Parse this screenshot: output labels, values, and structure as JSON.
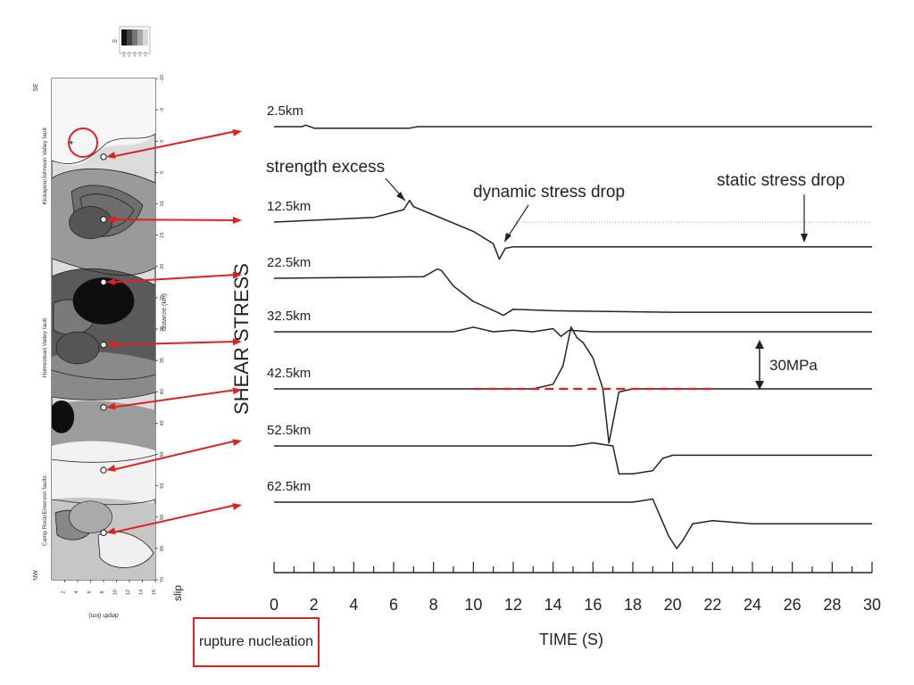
{
  "chart_data": [
    {
      "type": "heatmap",
      "title": "",
      "legend": {
        "unit_label": "m",
        "levels": [
          "8.0",
          "6.0",
          "4.0",
          "2.0",
          "1.0"
        ],
        "colors": [
          "#111111",
          "#444444",
          "#777777",
          "#a8a8a8",
          "#d8d8d8"
        ]
      },
      "xlabel": "depth (km)",
      "ylabel": "distance (km)",
      "depth_ticks": [
        "2",
        "4",
        "6",
        "8",
        "10",
        "12",
        "14",
        "16"
      ],
      "distance_ticks": [
        -10,
        -5,
        0,
        5,
        10,
        15,
        20,
        25,
        30,
        35,
        40,
        45,
        50,
        55,
        60,
        65,
        70
      ],
      "distance_range": [
        -10,
        70
      ],
      "depth_range": [
        0,
        16
      ],
      "slip_axis_label": "slip",
      "end_labels": {
        "top": "SE",
        "bottom": "NW"
      },
      "fault_segments": [
        {
          "label": "Kickapoo/Johnson Valley fault",
          "range": [
            -10,
            18
          ]
        },
        {
          "label": "Homestead Valley fault",
          "range": [
            18,
            48
          ]
        },
        {
          "label": "Camp Rock/Emerson faults",
          "range": [
            48,
            70
          ]
        }
      ],
      "hypocenter": {
        "distance": 0.5,
        "depth": 3
      },
      "stations": [
        {
          "distance": 2.5,
          "depth": 8
        },
        {
          "distance": 12.5,
          "depth": 8
        },
        {
          "distance": 22.5,
          "depth": 8
        },
        {
          "distance": 32.5,
          "depth": 8
        },
        {
          "distance": 42.5,
          "depth": 8
        },
        {
          "distance": 52.5,
          "depth": 8
        },
        {
          "distance": 62.5,
          "depth": 8
        }
      ],
      "slip_patches": [
        {
          "distance": 25.5,
          "depth": 8,
          "slip": 8
        },
        {
          "distance": 44,
          "depth": 1.5,
          "slip": 8
        },
        {
          "distance": 13,
          "depth": 6,
          "slip": 4
        },
        {
          "distance": 33,
          "depth": 4,
          "slip": 4
        },
        {
          "distance": 60,
          "depth": 6,
          "slip": 2
        }
      ]
    },
    {
      "type": "line",
      "title": "",
      "xlabel": "TIME (S)",
      "ylabel": "SHEAR STRESS",
      "xlim": [
        0,
        30
      ],
      "x_ticks": [
        0,
        2,
        4,
        6,
        8,
        10,
        12,
        14,
        16,
        18,
        20,
        22,
        24,
        26,
        28,
        30
      ],
      "scale_bar": {
        "label": "30MPa",
        "value": 30
      },
      "annotations": {
        "strength_excess": "strength excess",
        "dynamic_stress_drop": "dynamic stress drop",
        "static_stress_drop": "static stress drop",
        "nucleation_box": "rupture nucleation"
      },
      "reference_line": {
        "series": "42.5km",
        "x_from": 10,
        "x_to": 22,
        "y": 0
      },
      "series": [
        {
          "name": "2.5km",
          "x": [
            0,
            1.4,
            1.6,
            2.0,
            6.8,
            7.2,
            30
          ],
          "y": [
            0,
            0,
            1,
            -1,
            -1,
            0,
            0
          ]
        },
        {
          "name": "12.5km",
          "x": [
            0,
            5,
            6.5,
            6.8,
            7.0,
            8.5,
            10,
            11.0,
            11.3,
            11.6,
            12,
            30
          ],
          "y": [
            0,
            3,
            8,
            14,
            10,
            2,
            -6,
            -14,
            -24,
            -17,
            -16,
            -16
          ]
        },
        {
          "name": "22.5km",
          "x": [
            0,
            7.5,
            8.2,
            8.4,
            9,
            10,
            11.2,
            11.5,
            12,
            14,
            20,
            30
          ],
          "y": [
            0,
            1,
            6,
            5,
            -5,
            -15,
            -22,
            -24,
            -20,
            -21,
            -22,
            -22
          ]
        },
        {
          "name": "32.5km",
          "x": [
            0,
            9,
            10,
            11,
            12,
            13,
            14,
            14.4,
            14.8,
            16,
            30
          ],
          "y": [
            0,
            0,
            3,
            0,
            1,
            0,
            2,
            -3,
            1,
            0,
            0
          ]
        },
        {
          "name": "42.5km",
          "x": [
            0,
            10,
            13,
            14,
            14.5,
            14.9,
            15.2,
            15.5,
            16,
            16.5,
            16.8,
            17.3,
            18,
            30
          ],
          "y": [
            0,
            0,
            0,
            3,
            15,
            40,
            33,
            30,
            20,
            0,
            -35,
            -2,
            0,
            0
          ]
        },
        {
          "name": "52.5km",
          "x": [
            0,
            15,
            16,
            17,
            17.3,
            18,
            19,
            19.5,
            20,
            30
          ],
          "y": [
            0,
            0,
            2,
            0,
            -18,
            -18,
            -16,
            -8,
            -6,
            -6
          ]
        },
        {
          "name": "62.5km",
          "x": [
            0,
            18,
            19,
            19.8,
            20.2,
            20.5,
            21,
            22,
            24,
            30
          ],
          "y": [
            0,
            0,
            2,
            -22,
            -30,
            -25,
            -14,
            -12,
            -14,
            -14
          ]
        }
      ]
    }
  ]
}
